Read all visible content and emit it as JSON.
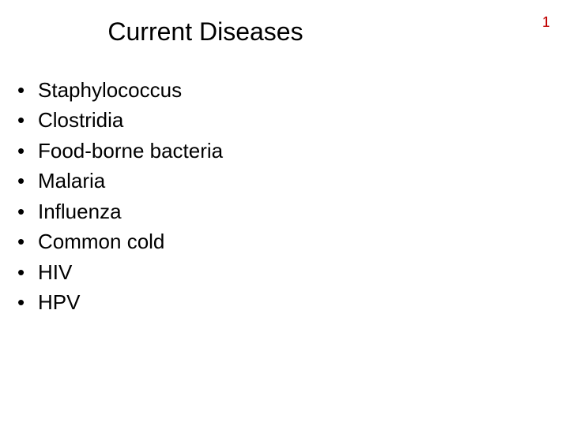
{
  "page_number": "1",
  "page_number_color": "#c00000",
  "title": "Current Diseases",
  "title_fontsize": 32,
  "title_color": "#000000",
  "background_color": "#ffffff",
  "bullets": {
    "items": [
      "Staphylococcus",
      "Clostridia",
      "Food-borne bacteria",
      "Malaria",
      "Influenza",
      "Common cold",
      "HIV",
      "HPV"
    ],
    "fontsize": 26,
    "color": "#000000",
    "marker": "•"
  }
}
